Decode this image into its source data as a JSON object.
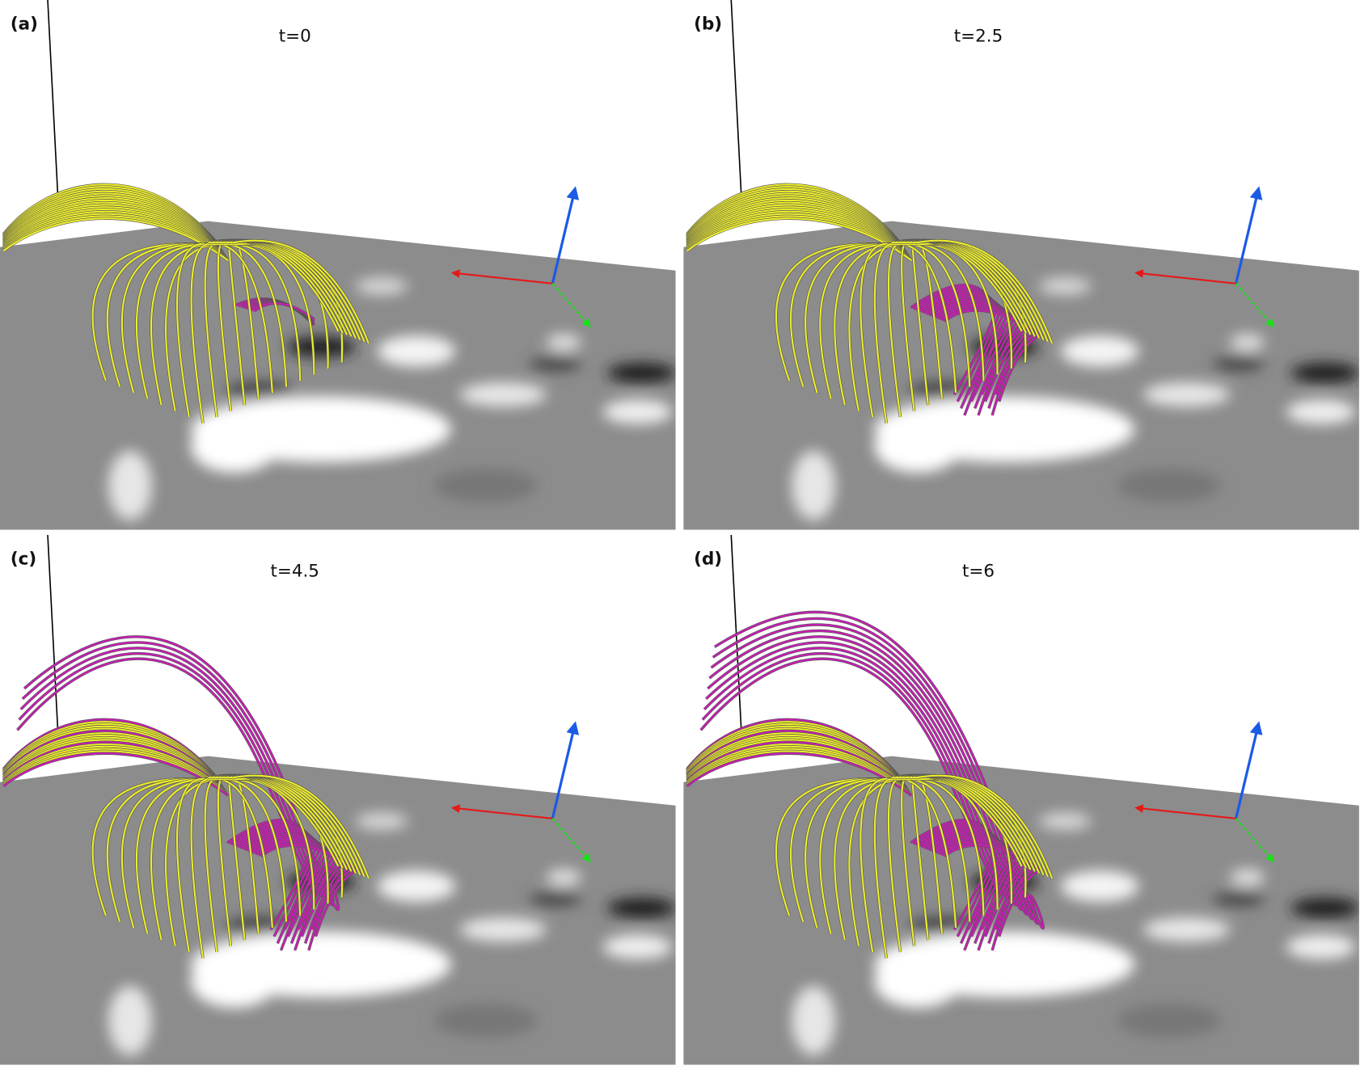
{
  "panels": [
    {
      "label": "(a)",
      "time": "t=0"
    },
    {
      "label": "(b)",
      "time": "t=2.5"
    },
    {
      "label": "(c)",
      "time": "t=4.5"
    },
    {
      "label": "(d)",
      "time": "t=6"
    }
  ]
}
